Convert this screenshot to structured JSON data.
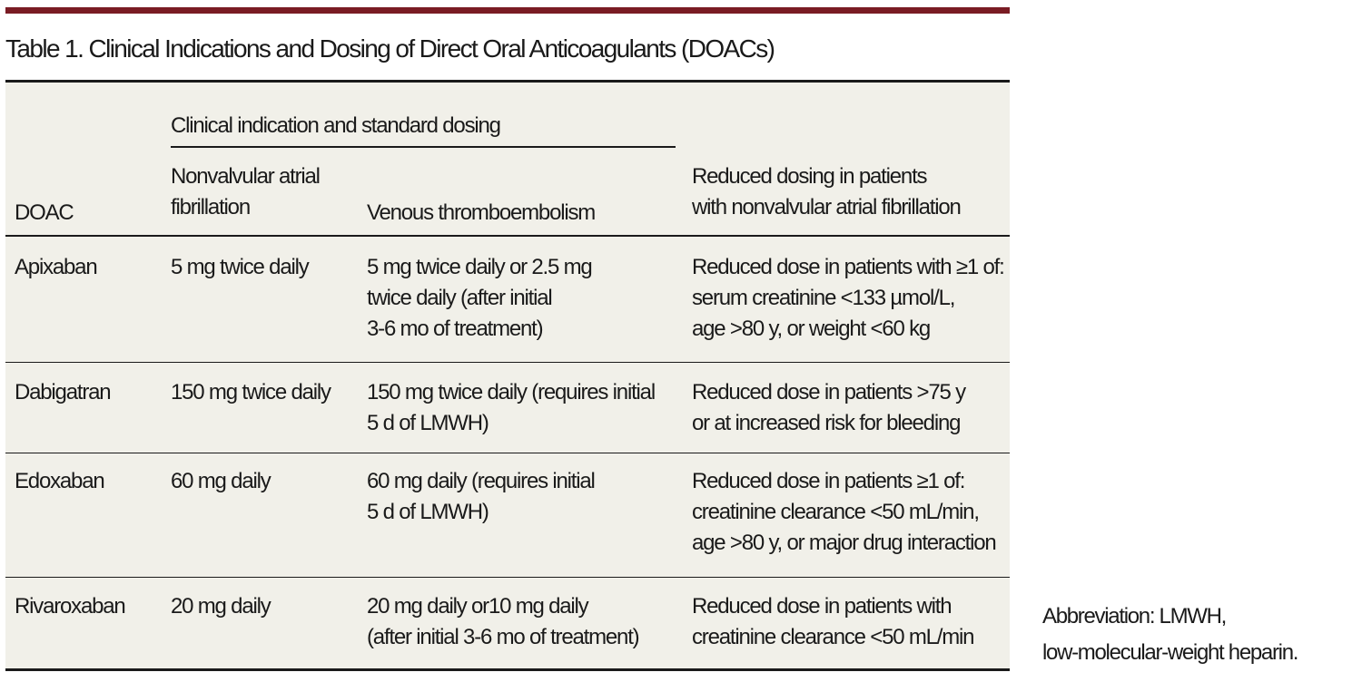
{
  "table": {
    "title": "Table 1. Clinical Indications and Dosing of Direct Oral Anticoagulants (DOACs)",
    "group_header": "Clinical indication and standard dosing",
    "columns": [
      "DOAC",
      "Nonvalvular atrial\nfibrillation",
      "Venous thromboembolism",
      "Reduced dosing in patients\nwith nonvalvular atrial fibrillation"
    ],
    "rows": [
      {
        "doac": "Apixaban",
        "af": "5 mg twice daily",
        "vte": "5 mg twice daily or 2.5 mg\ntwice daily (after initial\n3-6 mo of treatment)",
        "reduced": "Reduced dose in patients with ≥1 of:\nserum creatinine <133 µmol/L,\nage >80 y, or weight <60 kg"
      },
      {
        "doac": "Dabigatran",
        "af": "150 mg twice daily",
        "vte": "150 mg twice daily (requires initial\n5 d of LMWH)",
        "reduced": "Reduced dose in patients >75 y\nor at increased risk for bleeding"
      },
      {
        "doac": "Edoxaban",
        "af": "60 mg daily",
        "vte": "60 mg daily (requires initial\n5 d of LMWH)",
        "reduced": "Reduced dose in patients ≥1 of:\ncreatinine clearance <50 mL/min,\nage >80 y, or major drug interaction"
      },
      {
        "doac": "Rivaroxaban",
        "af": "20 mg daily",
        "vte": "20 mg daily or10 mg daily\n(after initial 3-6 mo of treatment)",
        "reduced": "Reduced dose in patients with\ncreatinine clearance <50 mL/min"
      }
    ]
  },
  "footnote": {
    "line1": "Abbreviation: LMWH,",
    "line2": "low-molecular-weight heparin."
  },
  "colors": {
    "accent_rule": "#7a1c24",
    "table_background": "#f1f0e9",
    "text": "#1a1a1a"
  }
}
